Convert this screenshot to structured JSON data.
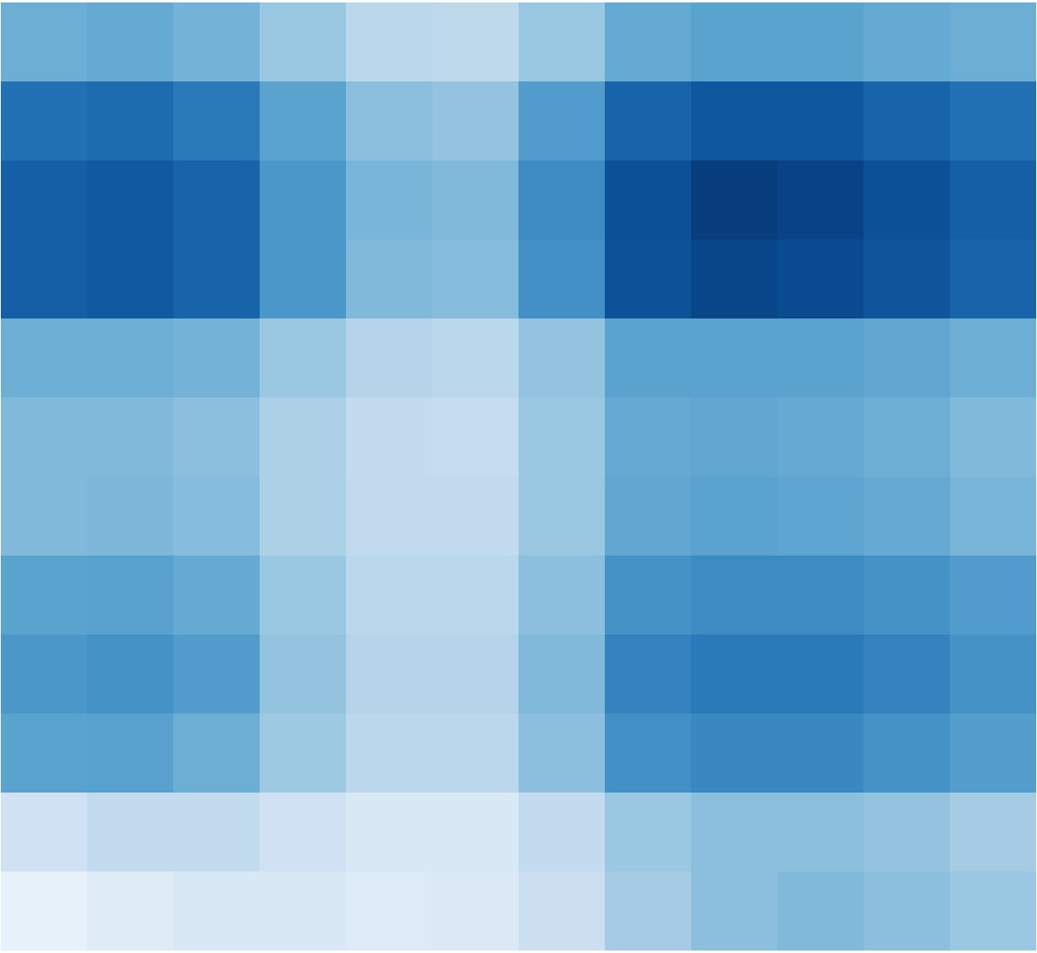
{
  "chart_data": {
    "type": "heatmap",
    "color": "blues",
    "tick_labels": false,
    "color_range": [
      0,
      1
    ],
    "cells": [
      [
        0.5,
        0.52,
        0.48,
        0.38,
        0.28,
        0.27,
        0.38,
        0.52,
        0.55,
        0.55,
        0.52,
        0.5
      ],
      [
        0.75,
        0.77,
        0.72,
        0.55,
        0.42,
        0.4,
        0.58,
        0.8,
        0.85,
        0.85,
        0.8,
        0.75
      ],
      [
        0.82,
        0.84,
        0.8,
        0.6,
        0.47,
        0.45,
        0.65,
        0.88,
        0.95,
        0.93,
        0.88,
        0.82
      ],
      [
        0.82,
        0.84,
        0.8,
        0.6,
        0.45,
        0.43,
        0.63,
        0.87,
        0.92,
        0.9,
        0.86,
        0.8
      ],
      [
        0.5,
        0.5,
        0.48,
        0.38,
        0.3,
        0.28,
        0.4,
        0.55,
        0.55,
        0.55,
        0.53,
        0.5
      ],
      [
        0.45,
        0.45,
        0.42,
        0.33,
        0.25,
        0.24,
        0.38,
        0.52,
        0.53,
        0.52,
        0.5,
        0.45
      ],
      [
        0.45,
        0.46,
        0.43,
        0.33,
        0.26,
        0.25,
        0.38,
        0.53,
        0.55,
        0.54,
        0.52,
        0.47
      ],
      [
        0.55,
        0.56,
        0.52,
        0.38,
        0.28,
        0.28,
        0.42,
        0.62,
        0.65,
        0.65,
        0.62,
        0.58
      ],
      [
        0.6,
        0.62,
        0.58,
        0.4,
        0.3,
        0.3,
        0.45,
        0.68,
        0.72,
        0.72,
        0.68,
        0.62
      ],
      [
        0.55,
        0.56,
        0.5,
        0.37,
        0.28,
        0.28,
        0.42,
        0.63,
        0.66,
        0.66,
        0.62,
        0.57
      ],
      [
        0.2,
        0.25,
        0.25,
        0.2,
        0.15,
        0.15,
        0.25,
        0.38,
        0.42,
        0.42,
        0.4,
        0.35
      ],
      [
        0.08,
        0.12,
        0.15,
        0.15,
        0.13,
        0.14,
        0.22,
        0.35,
        0.42,
        0.45,
        0.42,
        0.38
      ]
    ]
  }
}
